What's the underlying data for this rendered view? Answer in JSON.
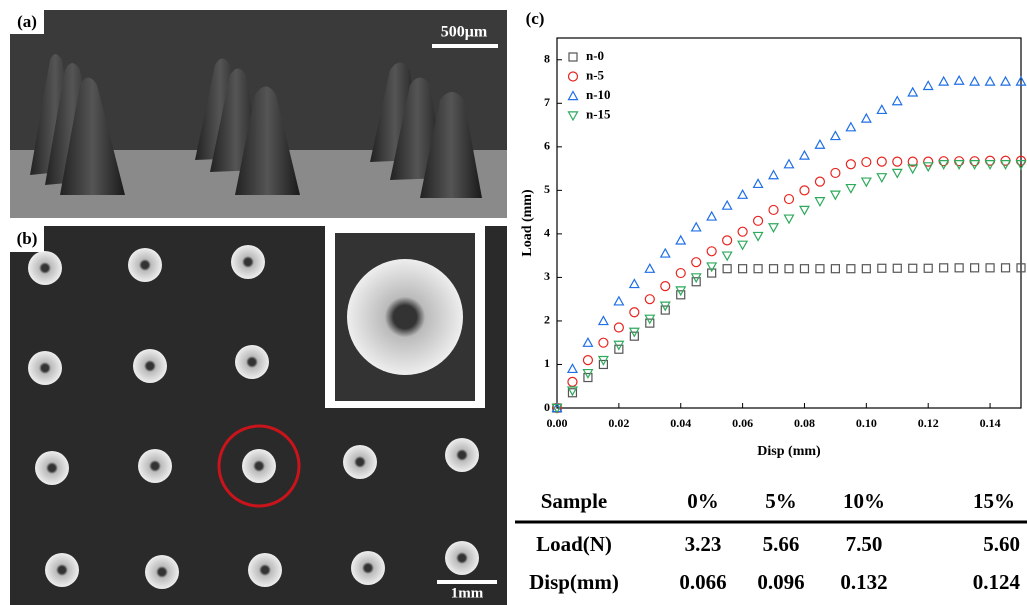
{
  "panel_a": {
    "label": "(a)",
    "scale_bar": "500μm"
  },
  "panel_b": {
    "label": "(b)",
    "scale_bar": "1mm"
  },
  "chart_data": {
    "type": "scatter",
    "panel_label": "(c)",
    "x_label": "Disp (mm)",
    "y_label": "Load (mm)",
    "x": [
      0,
      0.005,
      0.01,
      0.015,
      0.02,
      0.025,
      0.03,
      0.035,
      0.04,
      0.045,
      0.05,
      0.055,
      0.06,
      0.065,
      0.07,
      0.075,
      0.08,
      0.085,
      0.09,
      0.095,
      0.1,
      0.105,
      0.11,
      0.115,
      0.12,
      0.125,
      0.13,
      0.135,
      0.14,
      0.145,
      0.15
    ],
    "series": [
      {
        "name": "n-0",
        "color": "#555555",
        "marker": "square",
        "values": [
          0,
          0.35,
          0.7,
          1.0,
          1.35,
          1.65,
          1.95,
          2.25,
          2.6,
          2.9,
          3.1,
          3.2,
          3.2,
          3.2,
          3.2,
          3.2,
          3.2,
          3.2,
          3.2,
          3.2,
          3.2,
          3.21,
          3.21,
          3.21,
          3.21,
          3.22,
          3.22,
          3.22,
          3.22,
          3.22,
          3.22
        ]
      },
      {
        "name": "n-5",
        "color": "#e8231f",
        "marker": "circle",
        "values": [
          0,
          0.6,
          1.1,
          1.5,
          1.85,
          2.2,
          2.5,
          2.8,
          3.1,
          3.35,
          3.6,
          3.85,
          4.05,
          4.3,
          4.55,
          4.8,
          5.0,
          5.2,
          5.4,
          5.6,
          5.65,
          5.66,
          5.66,
          5.66,
          5.66,
          5.67,
          5.67,
          5.67,
          5.68,
          5.68,
          5.68
        ]
      },
      {
        "name": "n-10",
        "color": "#1f6fe8",
        "marker": "triangle",
        "values": [
          0,
          0.9,
          1.5,
          2.0,
          2.45,
          2.85,
          3.2,
          3.55,
          3.85,
          4.15,
          4.4,
          4.65,
          4.9,
          5.15,
          5.35,
          5.6,
          5.8,
          6.05,
          6.25,
          6.45,
          6.65,
          6.85,
          7.05,
          7.25,
          7.4,
          7.5,
          7.52,
          7.5,
          7.5,
          7.5,
          7.5
        ]
      },
      {
        "name": "n-15",
        "color": "#2eaa5c",
        "marker": "triangle-down",
        "values": [
          0,
          0.4,
          0.8,
          1.1,
          1.45,
          1.75,
          2.05,
          2.35,
          2.7,
          3.0,
          3.25,
          3.5,
          3.75,
          3.95,
          4.15,
          4.35,
          4.55,
          4.75,
          4.9,
          5.05,
          5.2,
          5.3,
          5.4,
          5.5,
          5.55,
          5.6,
          5.6,
          5.6,
          5.6,
          5.6,
          5.6
        ]
      }
    ],
    "xlim": [
      0,
      0.15
    ],
    "xticks": [
      {
        "value": 0,
        "label": "0.00"
      },
      {
        "value": 0.02,
        "label": "0.02"
      },
      {
        "value": 0.04,
        "label": "0.04"
      },
      {
        "value": 0.06,
        "label": "0.06"
      },
      {
        "value": 0.08,
        "label": "0.08"
      },
      {
        "value": 0.1,
        "label": "0.10"
      },
      {
        "value": 0.12,
        "label": "0.12"
      },
      {
        "value": 0.14,
        "label": "0.14"
      }
    ],
    "ylim": [
      0,
      8.5
    ],
    "yticks": [
      0,
      1,
      2,
      3,
      4,
      5,
      6,
      7,
      8
    ],
    "grid": false,
    "legend": "upper left"
  },
  "table": {
    "header": [
      "Sample",
      "0%",
      "5%",
      "10%",
      "15%"
    ],
    "rows": [
      [
        "Load(N)",
        "3.23",
        "5.66",
        "7.50",
        "5.60"
      ],
      [
        "Disp(mm)",
        "0.066",
        "0.096",
        "0.132",
        "0.124"
      ]
    ]
  }
}
